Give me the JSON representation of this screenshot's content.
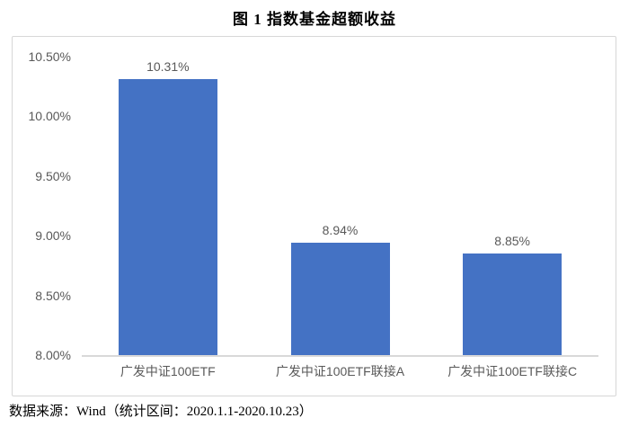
{
  "title": "图 1  指数基金超额收益",
  "source_note": "数据来源：Wind（统计区间：2020.1.1-2020.10.23）",
  "colors": {
    "bar": "#4472c4",
    "axis_line": "#d9d9d9",
    "tick_text": "#595959",
    "frame_border": "#d7d7d7"
  },
  "chart_data": {
    "type": "bar",
    "title": "图 1  指数基金超额收益",
    "categories": [
      "广发中证100ETF",
      "广发中证100ETF联接A",
      "广发中证100ETF联接C"
    ],
    "values": [
      10.31,
      8.94,
      8.85
    ],
    "value_labels": [
      "10.31%",
      "8.94%",
      "8.85%"
    ],
    "xlabel": "",
    "ylabel": "",
    "ylim": [
      8.0,
      10.5
    ],
    "yticks": [
      {
        "value": 8.0,
        "label": "8.00%"
      },
      {
        "value": 8.5,
        "label": "8.50%"
      },
      {
        "value": 9.0,
        "label": "9.00%"
      },
      {
        "value": 9.5,
        "label": "9.50%"
      },
      {
        "value": 10.0,
        "label": "10.00%"
      },
      {
        "value": 10.5,
        "label": "10.50%"
      }
    ],
    "grid": false,
    "legend": "none",
    "bar_color": "#4472c4"
  }
}
